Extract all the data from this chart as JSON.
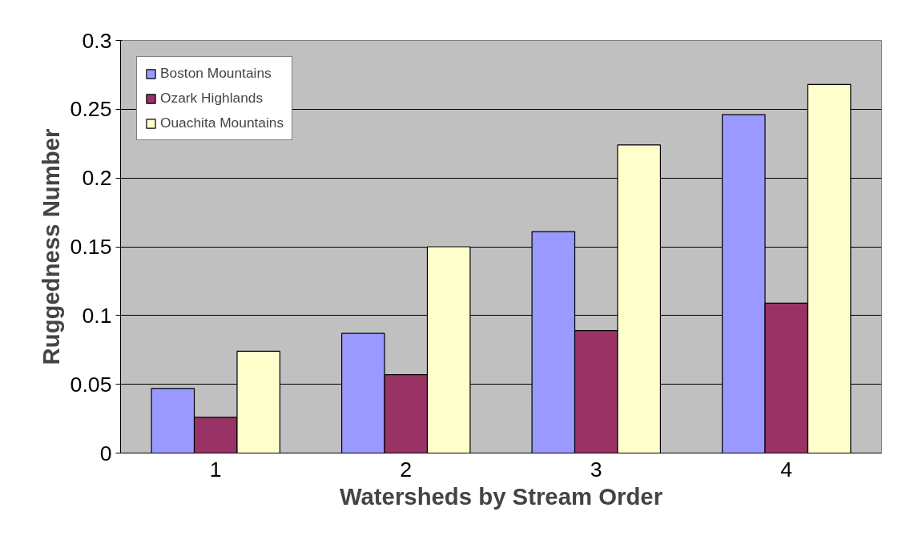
{
  "chart_data": {
    "type": "bar",
    "xlabel": "Watersheds by Stream Order",
    "ylabel": "Ruggedness Number",
    "categories": [
      "1",
      "2",
      "3",
      "4"
    ],
    "series": [
      {
        "name": "Boston Mountains",
        "color": "#9999ff",
        "values": [
          0.047,
          0.087,
          0.161,
          0.246
        ]
      },
      {
        "name": "Ozark Highlands",
        "color": "#993366",
        "values": [
          0.026,
          0.057,
          0.089,
          0.109
        ]
      },
      {
        "name": "Ouachita Mountains",
        "color": "#ffffcc",
        "values": [
          0.074,
          0.15,
          0.224,
          0.268
        ]
      }
    ],
    "ylim": [
      0,
      0.3
    ],
    "yticks": [
      0,
      0.05,
      0.1,
      0.15,
      0.2,
      0.25,
      0.3
    ],
    "grid": "y",
    "legend": "top left"
  }
}
